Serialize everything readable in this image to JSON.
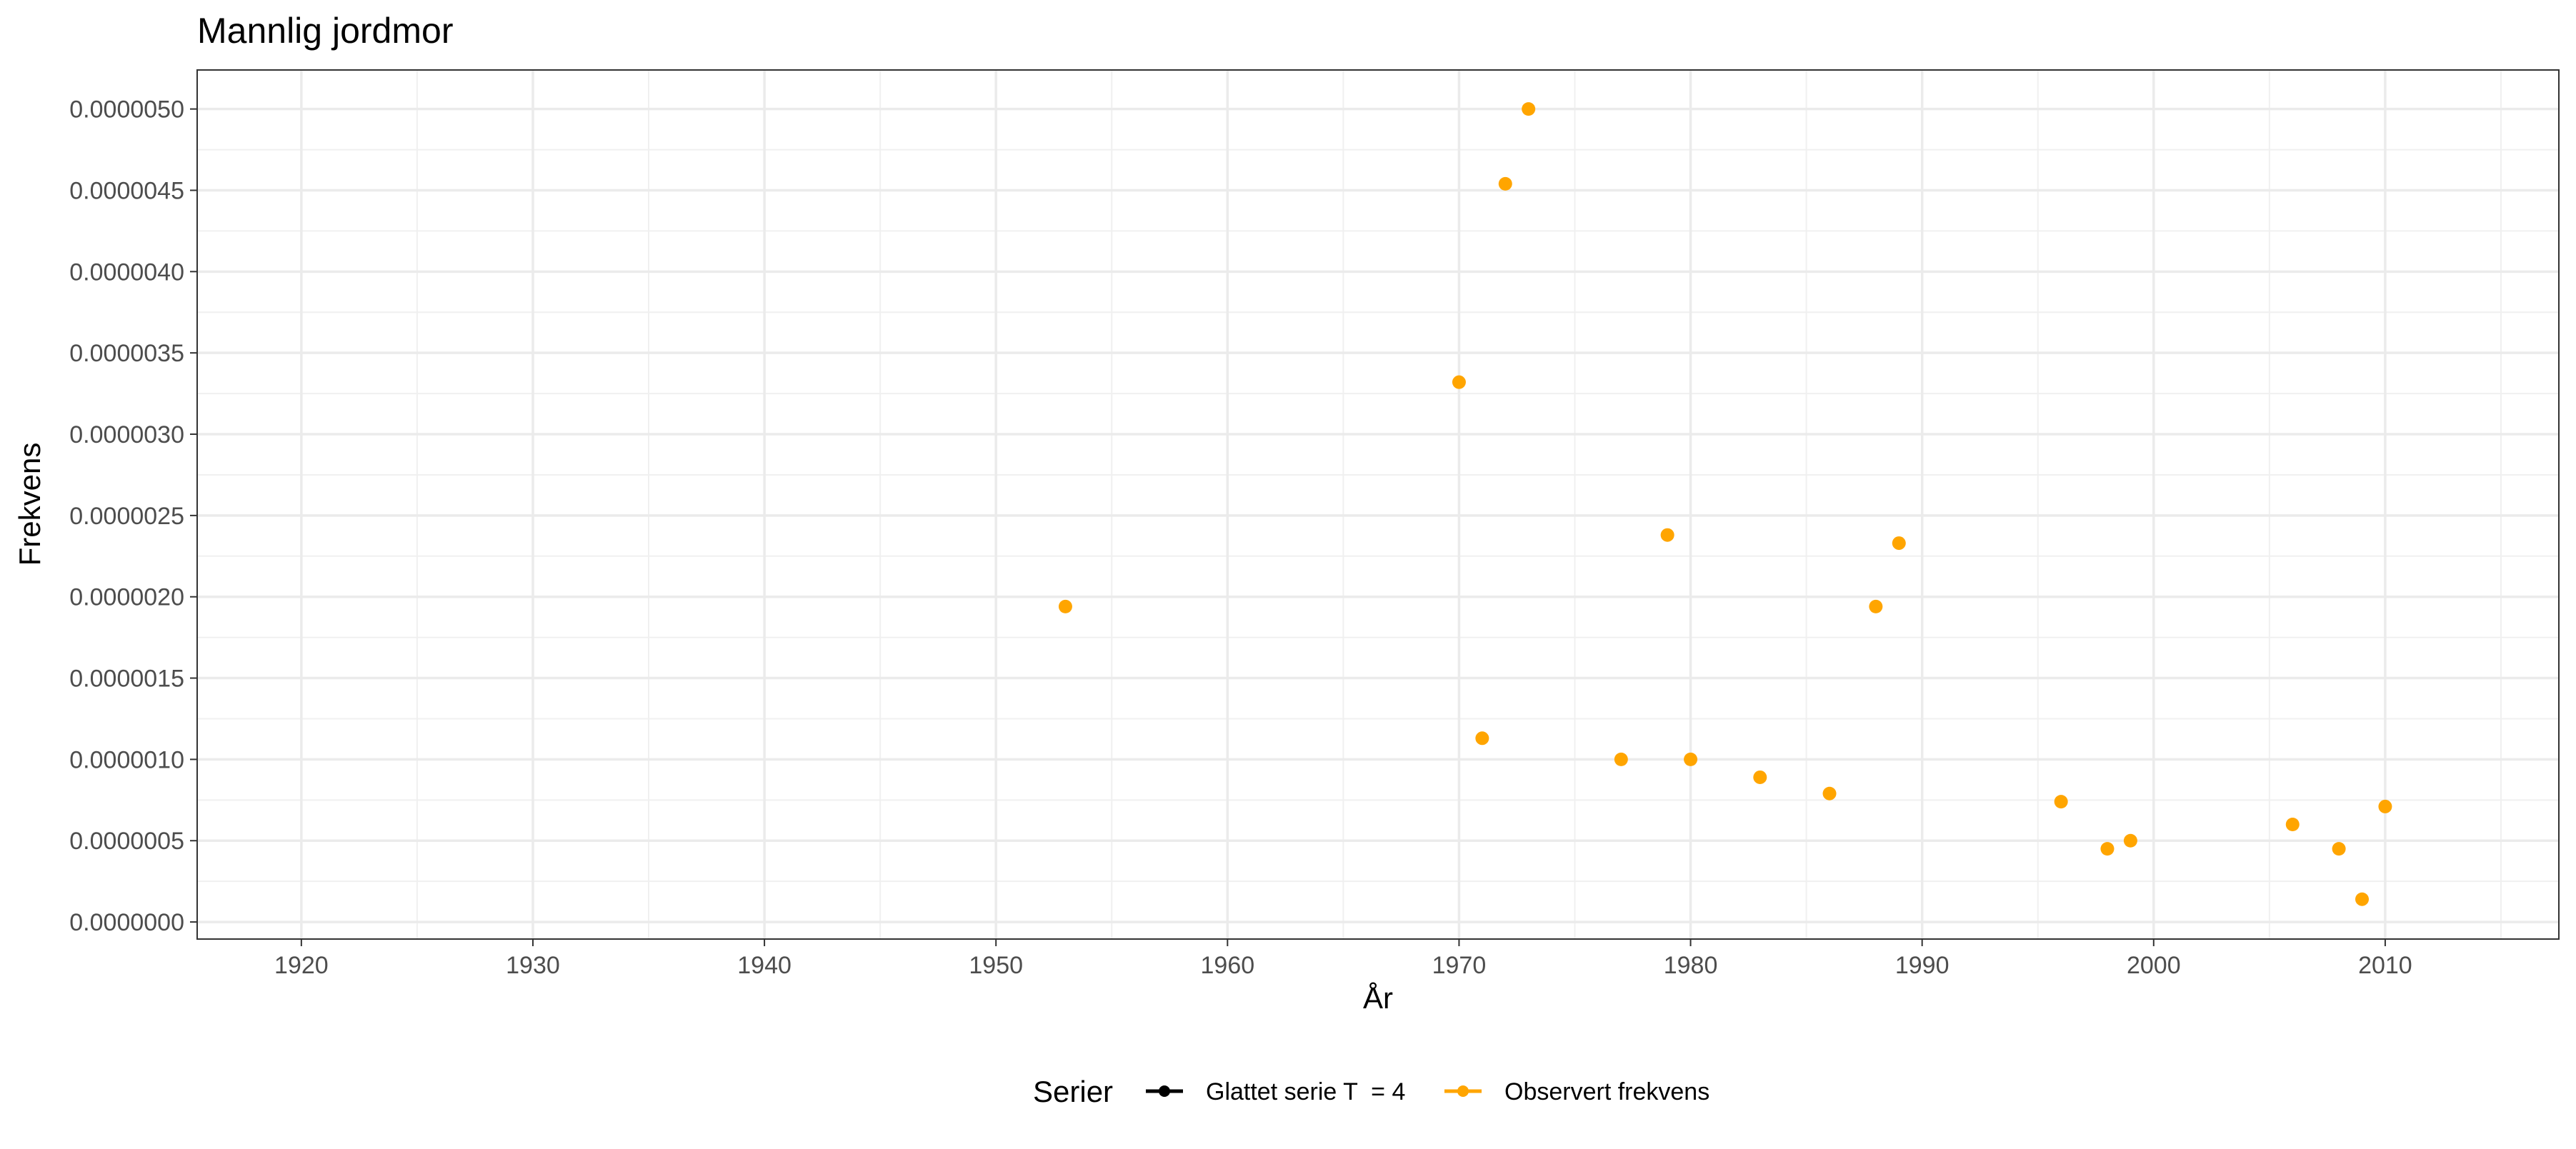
{
  "chart_data": {
    "type": "scatter",
    "title": "Mannlig jordmor",
    "xlabel": "År",
    "ylabel": "Frekvens",
    "xlim": [
      1915.5,
      2017.5
    ],
    "ylim": [
      -1.05e-07,
      5.24e-06
    ],
    "x_ticks": [
      1920,
      1930,
      1940,
      1950,
      1960,
      1970,
      1980,
      1990,
      2000,
      2010
    ],
    "y_ticks": [
      0,
      5e-07,
      1e-06,
      1.5e-06,
      2e-06,
      2.5e-06,
      3e-06,
      3.5e-06,
      4e-06,
      4.5e-06,
      5e-06
    ],
    "y_tick_labels": [
      "0.0000000",
      "0.0000005",
      "0.0000010",
      "0.0000015",
      "0.0000020",
      "0.0000025",
      "0.0000030",
      "0.0000035",
      "0.0000040",
      "0.0000045",
      "0.0000050"
    ],
    "grid": true,
    "legend_position": "bottom",
    "legend_title": "Serier",
    "series": [
      {
        "name": "Glattet serie T  = 4",
        "color": "#000000",
        "x": [],
        "y": []
      },
      {
        "name": "Observert frekvens",
        "color": "#FFA500",
        "x": [
          1953,
          1970,
          1971,
          1972,
          1973,
          1977,
          1979,
          1980,
          1983,
          1986,
          1988,
          1989,
          1996,
          1998,
          1999,
          2006,
          2008,
          2009,
          2010
        ],
        "y": [
          1.94e-06,
          3.32e-06,
          1.13e-06,
          4.54e-06,
          5e-06,
          1e-06,
          2.38e-06,
          1e-06,
          8.9e-07,
          7.9e-07,
          1.94e-06,
          2.33e-06,
          7.4e-07,
          4.5e-07,
          5e-07,
          6e-07,
          4.5e-07,
          1.4e-07,
          7.1e-07
        ]
      }
    ]
  }
}
